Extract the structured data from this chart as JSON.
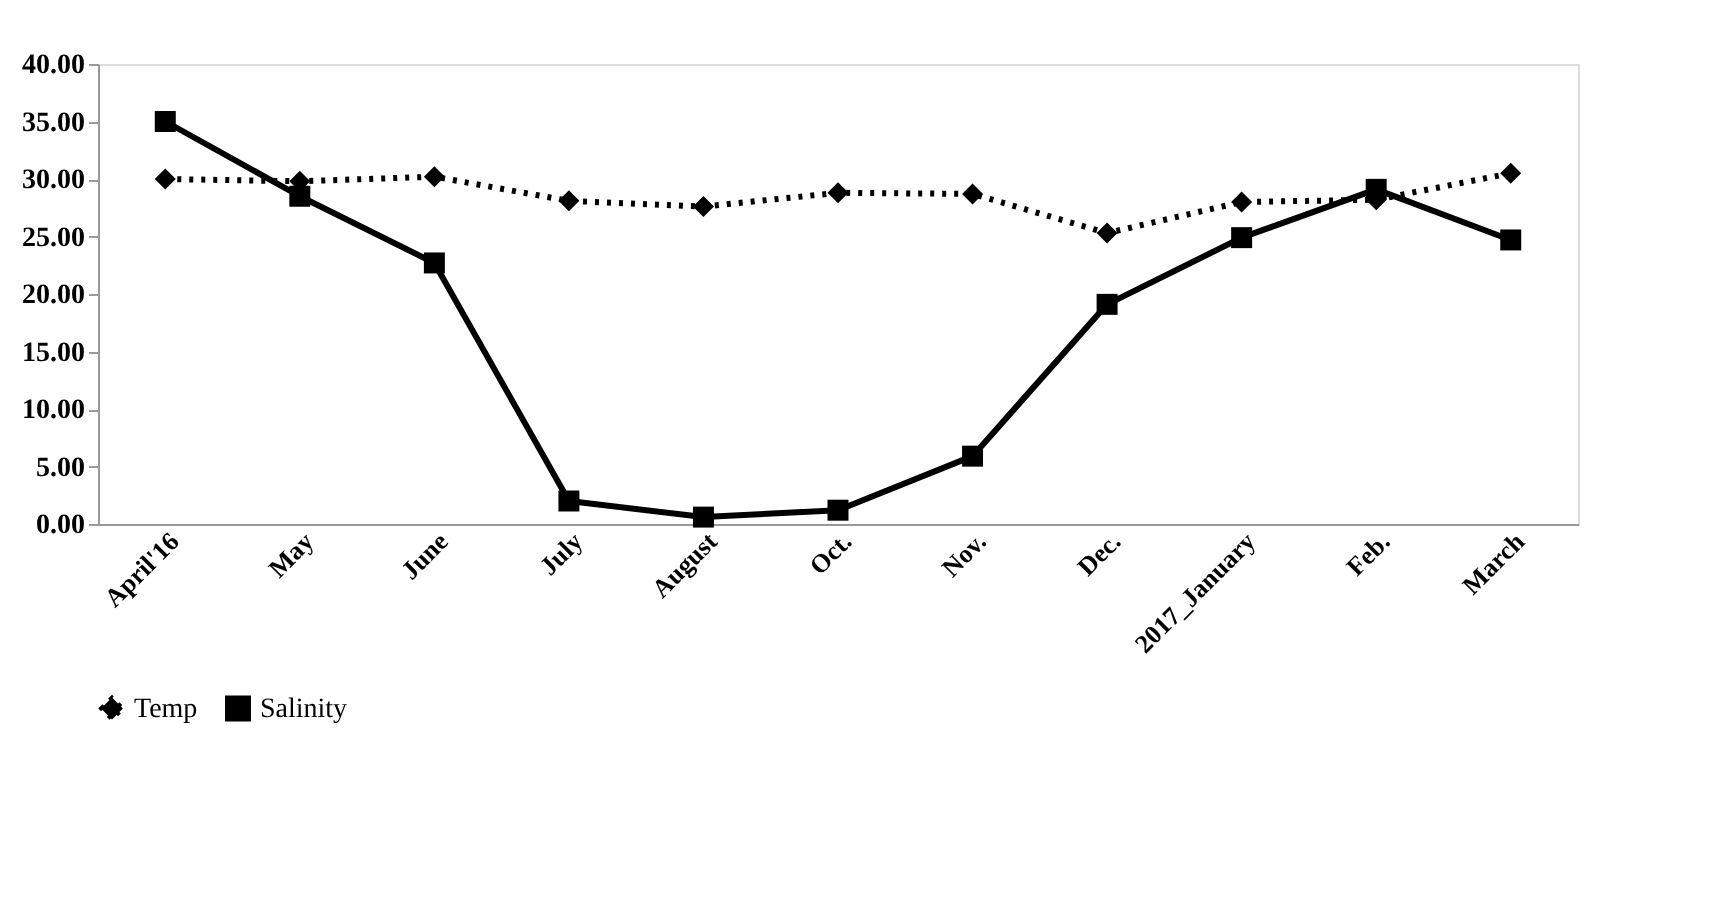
{
  "chart_data": {
    "type": "line",
    "categories": [
      "April'16",
      "May",
      "June",
      "July",
      "August",
      "Oct.",
      "Nov.",
      "Dec.",
      "2017_January",
      "Feb.",
      "March"
    ],
    "series": [
      {
        "name": "Temp",
        "color": "#000000",
        "line_style": "dotted",
        "marker": "diamond",
        "values": [
          30.0,
          29.8,
          30.2,
          28.1,
          27.6,
          28.8,
          28.7,
          25.3,
          28.0,
          28.2,
          30.5
        ]
      },
      {
        "name": "Salinity",
        "color": "#000000",
        "line_style": "solid",
        "marker": "square",
        "values": [
          35.0,
          28.5,
          22.7,
          2.0,
          0.6,
          1.2,
          5.9,
          19.1,
          24.9,
          29.1,
          24.7
        ]
      }
    ],
    "ylim": [
      0,
      40
    ],
    "yticks": [
      {
        "value": 0,
        "label": "0.00"
      },
      {
        "value": 5,
        "label": "5.00"
      },
      {
        "value": 10,
        "label": "10.00"
      },
      {
        "value": 15,
        "label": "15.00"
      },
      {
        "value": 20,
        "label": "20.00"
      },
      {
        "value": 25,
        "label": "25.00"
      },
      {
        "value": 30,
        "label": "30.00"
      },
      {
        "value": 35,
        "label": "35.00"
      },
      {
        "value": 40,
        "label": "40.00"
      }
    ],
    "grid": false,
    "legend": "bottom"
  }
}
